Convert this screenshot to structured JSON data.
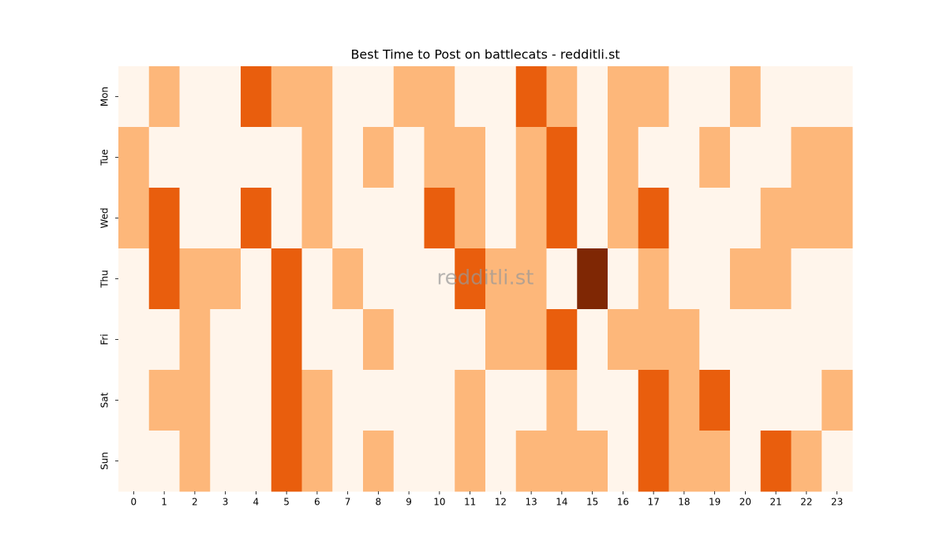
{
  "chart_data": {
    "type": "heatmap",
    "title": "Best Time to Post on battlecats - redditli.st",
    "watermark": "redditli.st",
    "x": [
      0,
      1,
      2,
      3,
      4,
      5,
      6,
      7,
      8,
      9,
      10,
      11,
      12,
      13,
      14,
      15,
      16,
      17,
      18,
      19,
      20,
      21,
      22,
      23
    ],
    "y": [
      "Mon",
      "Tue",
      "Wed",
      "Thu",
      "Fri",
      "Sat",
      "Sun"
    ],
    "colors": [
      "#fff5eb",
      "#fdb77a",
      "#e95e0d",
      "#7f2704"
    ],
    "z": [
      [
        0,
        1,
        0,
        0,
        2,
        1,
        1,
        0,
        0,
        1,
        1,
        0,
        0,
        2,
        1,
        0,
        1,
        1,
        0,
        0,
        1,
        0,
        0,
        0
      ],
      [
        1,
        0,
        0,
        0,
        0,
        0,
        1,
        0,
        1,
        0,
        1,
        1,
        0,
        1,
        2,
        0,
        1,
        0,
        0,
        1,
        0,
        0,
        1,
        1
      ],
      [
        1,
        2,
        0,
        0,
        2,
        0,
        1,
        0,
        0,
        0,
        2,
        1,
        0,
        1,
        2,
        0,
        1,
        2,
        0,
        0,
        0,
        1,
        1,
        1
      ],
      [
        0,
        2,
        1,
        1,
        0,
        2,
        0,
        1,
        0,
        0,
        0,
        2,
        1,
        1,
        0,
        3,
        0,
        1,
        0,
        0,
        1,
        1,
        0,
        0
      ],
      [
        0,
        0,
        1,
        0,
        0,
        2,
        0,
        0,
        1,
        0,
        0,
        0,
        1,
        1,
        2,
        0,
        1,
        1,
        1,
        0,
        0,
        0,
        0,
        0
      ],
      [
        0,
        1,
        1,
        0,
        0,
        2,
        1,
        0,
        0,
        0,
        0,
        1,
        0,
        0,
        1,
        0,
        0,
        2,
        1,
        2,
        0,
        0,
        0,
        1
      ],
      [
        0,
        0,
        1,
        0,
        0,
        2,
        1,
        0,
        1,
        0,
        0,
        1,
        0,
        1,
        1,
        1,
        0,
        2,
        1,
        1,
        0,
        2,
        1,
        0
      ]
    ]
  }
}
